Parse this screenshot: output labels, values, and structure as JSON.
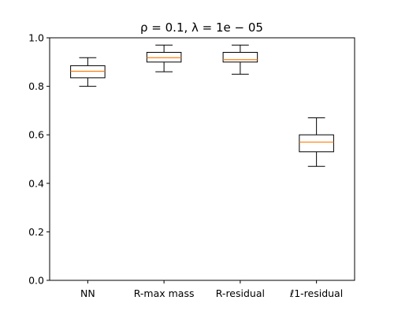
{
  "chart_data": {
    "type": "box",
    "title": "ρ = 0.1, λ = 1e − 05",
    "xlabel": "",
    "ylabel": "",
    "ylim": [
      0.0,
      1.0
    ],
    "yticks": [
      "0.0",
      "0.2",
      "0.4",
      "0.6",
      "0.8",
      "1.0"
    ],
    "categories": [
      "NN",
      "R-max mass",
      "R-residual",
      "ℓ1-residual"
    ],
    "boxes": [
      {
        "whisker_low": 0.8,
        "q1": 0.835,
        "median": 0.862,
        "q3": 0.885,
        "whisker_high": 0.918
      },
      {
        "whisker_low": 0.86,
        "q1": 0.9,
        "median": 0.918,
        "q3": 0.94,
        "whisker_high": 0.97
      },
      {
        "whisker_low": 0.85,
        "q1": 0.9,
        "median": 0.91,
        "q3": 0.94,
        "whisker_high": 0.97
      },
      {
        "whisker_low": 0.47,
        "q1": 0.53,
        "median": 0.57,
        "q3": 0.6,
        "whisker_high": 0.67
      }
    ],
    "colors": {
      "box": "#000000",
      "median": "#ff7f0e"
    },
    "grid": false,
    "legend": "none"
  }
}
